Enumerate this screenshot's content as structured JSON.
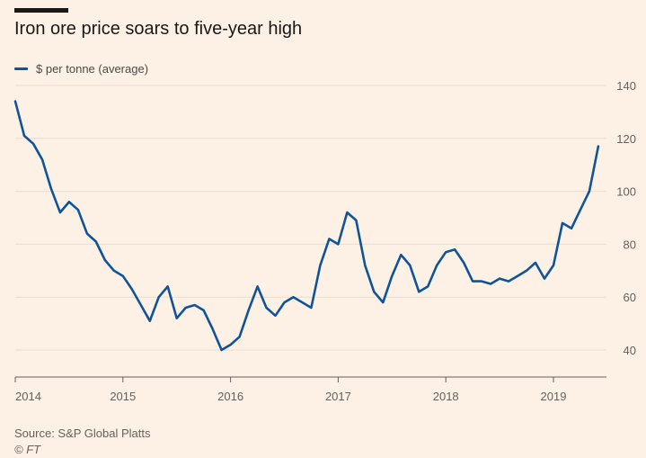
{
  "header": {
    "title": "Iron ore price soars to five-year high"
  },
  "footer": {
    "source": "Source: S&P Global Platts",
    "copyright": "© FT"
  },
  "colors": {
    "background": "#fdf1e5",
    "line": "#0f5499",
    "grid": "#e9ddd0",
    "axis": "#66605c",
    "title_bar": "#1a1817"
  },
  "chart_data": {
    "type": "line",
    "title": "Iron ore price soars to five-year high",
    "xlabel": "",
    "ylabel": "",
    "ylim": [
      30,
      145
    ],
    "xlim": [
      "2014-01",
      "2019-06"
    ],
    "yticks": [
      40,
      60,
      80,
      100,
      120,
      140
    ],
    "xticks": [
      "2014",
      "2015",
      "2016",
      "2017",
      "2018",
      "2019"
    ],
    "y_axis_position": "right",
    "grid": true,
    "legend_position": "top-left",
    "series": [
      {
        "name": "$ per tonne (average)",
        "color": "#0f5499",
        "x": [
          "2014-01",
          "2014-02",
          "2014-03",
          "2014-04",
          "2014-05",
          "2014-06",
          "2014-07",
          "2014-08",
          "2014-09",
          "2014-10",
          "2014-11",
          "2014-12",
          "2015-01",
          "2015-02",
          "2015-03",
          "2015-04",
          "2015-05",
          "2015-06",
          "2015-07",
          "2015-08",
          "2015-09",
          "2015-10",
          "2015-11",
          "2015-12",
          "2016-01",
          "2016-02",
          "2016-03",
          "2016-04",
          "2016-05",
          "2016-06",
          "2016-07",
          "2016-08",
          "2016-09",
          "2016-10",
          "2016-11",
          "2016-12",
          "2017-01",
          "2017-02",
          "2017-03",
          "2017-04",
          "2017-05",
          "2017-06",
          "2017-07",
          "2017-08",
          "2017-09",
          "2017-10",
          "2017-11",
          "2017-12",
          "2018-01",
          "2018-02",
          "2018-03",
          "2018-04",
          "2018-05",
          "2018-06",
          "2018-07",
          "2018-08",
          "2018-09",
          "2018-10",
          "2018-11",
          "2018-12",
          "2019-01",
          "2019-02",
          "2019-03",
          "2019-04",
          "2019-05",
          "2019-06"
        ],
        "values": [
          134,
          121,
          118,
          112,
          101,
          92,
          96,
          93,
          84,
          81,
          74,
          70,
          68,
          63,
          57,
          51,
          60,
          64,
          52,
          56,
          57,
          55,
          48,
          40,
          42,
          45,
          55,
          64,
          56,
          53,
          58,
          60,
          58,
          56,
          72,
          82,
          80,
          92,
          89,
          72,
          62,
          58,
          68,
          76,
          72,
          62,
          64,
          72,
          77,
          78,
          73,
          66,
          66,
          65,
          67,
          66,
          68,
          70,
          73,
          67,
          72,
          88,
          86,
          93,
          100,
          117
        ]
      }
    ]
  }
}
